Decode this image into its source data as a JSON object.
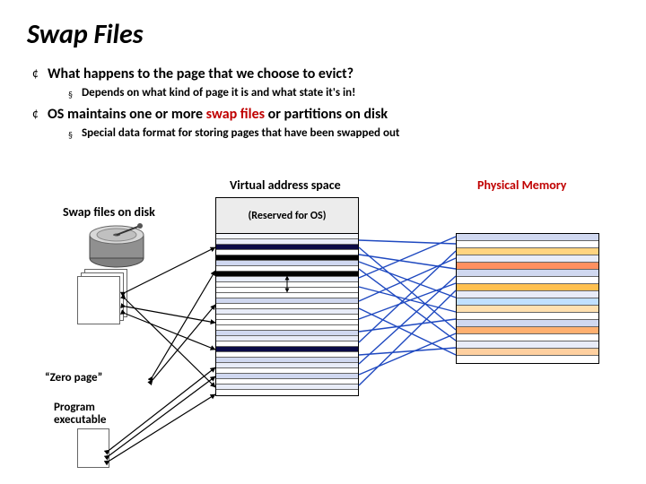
{
  "title": "Swap Files",
  "bullets": [
    {
      "text": "What happens to the page that we choose to evict?",
      "sub": "Depends on what kind of page it is and what state it's in!"
    },
    {
      "text_pre": "OS maintains one or more ",
      "accent": "swap files",
      "text_post": " or partitions on disk",
      "sub": "Special data format for storing pages that have been swapped out"
    }
  ],
  "labels": {
    "vas": "Virtual address space",
    "reserved": "(Reserved for OS)",
    "pm": "Physical Memory",
    "swap": "Swap files on disk",
    "zero": "“Zero page”",
    "exe": "Program executable"
  },
  "colors": {
    "line_blue": "#1f49c0",
    "line_black": "#000000",
    "bg": "#ffffff",
    "accent": "#c00000",
    "vas_dark": "#0a0a46",
    "vas_med": "#d0d8f0",
    "vas_light": "#e8ecf8",
    "vas_white": "#ffffff",
    "vas_black": "#000000",
    "pm_colors": [
      "#d0d8f0",
      "#ffffff",
      "#ffd480",
      "#e8ecf8",
      "#ff9060",
      "#d0d8f0",
      "#ffffff",
      "#ffc050",
      "#e8ecf8",
      "#c0e0ff",
      "#ffe0b0",
      "#ffffff",
      "#d0d8f0",
      "#ffb070",
      "#ffffff",
      "#e8ecf8",
      "#ffd0a0",
      "#ffffff"
    ]
  },
  "vas_rows": [
    "#f4f6fc",
    "#e8ecf8",
    "#0a0a46",
    "#ffffff",
    "#000000",
    "#d0d8f0",
    "#ffffff",
    "#000000",
    "#e8ecf8",
    "#ffffff",
    "#ffffff",
    "#ffffff",
    "#d0d8f0",
    "#ffffff",
    "#e8ecf8",
    "#ffffff",
    "#ffffff",
    "#ffffff",
    "#d0d8f0",
    "#e8ecf8",
    "#ffffff",
    "#0a0a46",
    "#ffffff",
    "#d0d8f0",
    "#e8ecf8",
    "#ffffff",
    "#d0d8f0",
    "#ffffff",
    "#e8ecf8",
    "#ffffff"
  ],
  "blue_lines": [
    [
      400,
      268,
      508,
      272
    ],
    [
      400,
      276,
      508,
      368
    ],
    [
      400,
      284,
      508,
      300
    ],
    [
      400,
      292,
      508,
      332
    ],
    [
      400,
      300,
      508,
      380
    ],
    [
      400,
      310,
      508,
      264
    ],
    [
      400,
      320,
      508,
      348
    ],
    [
      400,
      336,
      508,
      288
    ],
    [
      400,
      344,
      508,
      396
    ],
    [
      400,
      356,
      508,
      316
    ],
    [
      400,
      370,
      508,
      356
    ],
    [
      400,
      382,
      508,
      280
    ],
    [
      400,
      396,
      508,
      388
    ],
    [
      400,
      406,
      508,
      308
    ],
    [
      400,
      418,
      508,
      372
    ],
    [
      400,
      430,
      508,
      324
    ]
  ],
  "black_lines": [
    [
      170,
      420,
      240,
      302
    ],
    [
      170,
      424,
      240,
      340
    ],
    [
      140,
      326,
      240,
      276
    ],
    [
      140,
      334,
      240,
      432
    ],
    [
      140,
      342,
      240,
      360
    ],
    [
      140,
      350,
      240,
      390
    ],
    [
      122,
      502,
      240,
      410
    ],
    [
      122,
      508,
      240,
      420
    ],
    [
      122,
      514,
      240,
      440
    ]
  ]
}
